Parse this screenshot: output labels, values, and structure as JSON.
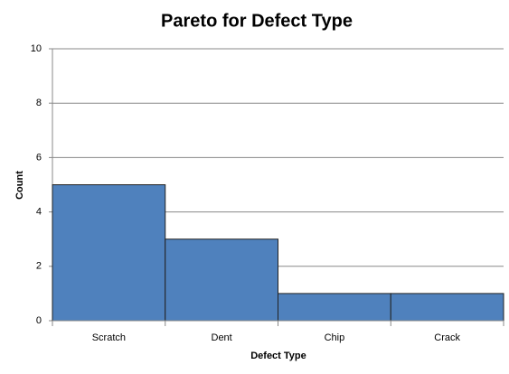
{
  "chart_data": {
    "type": "bar",
    "title": "Pareto for Defect Type",
    "xlabel": "Defect Type",
    "ylabel": "Count",
    "categories": [
      "Scratch",
      "Dent",
      "Chip",
      "Crack"
    ],
    "values": [
      5,
      3,
      1,
      1
    ],
    "color": "#4f81bd",
    "ylim": [
      0,
      10
    ],
    "yticks": [
      0,
      2,
      4,
      6,
      8,
      10
    ],
    "grid": true
  }
}
